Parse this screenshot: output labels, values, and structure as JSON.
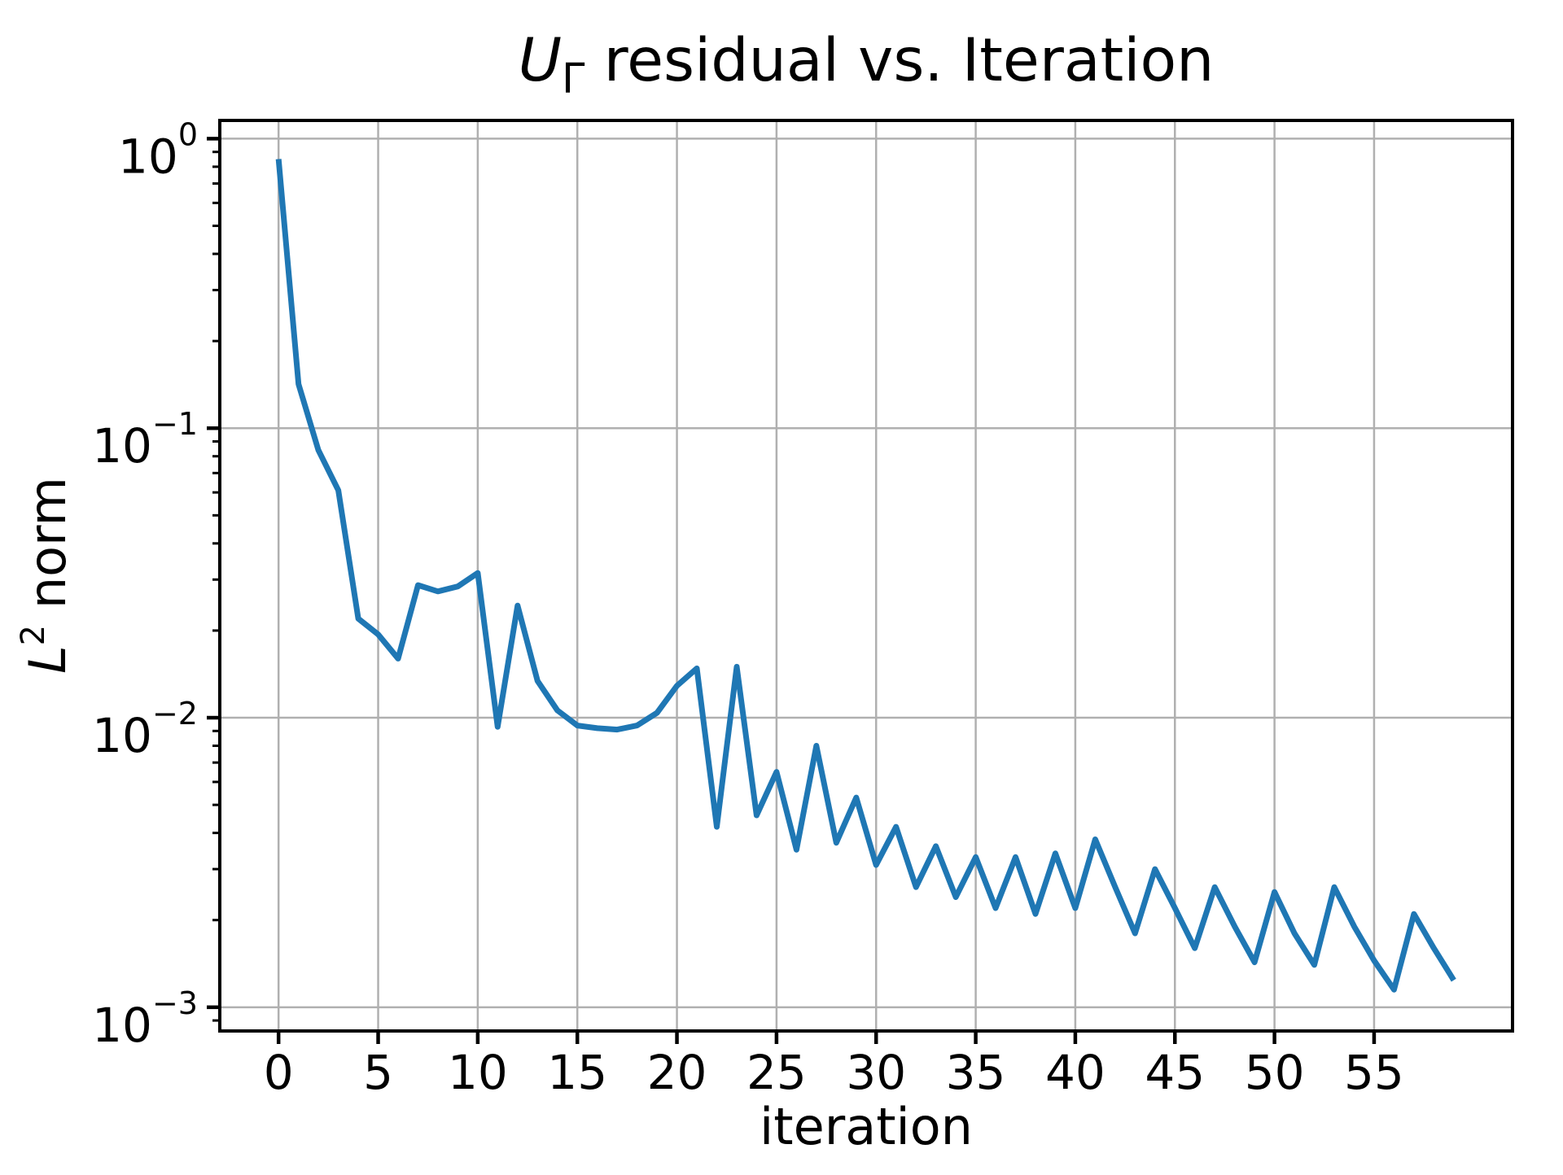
{
  "chart_data": {
    "type": "line",
    "title": {
      "math_var": "U",
      "math_sub": "Γ",
      "rest": " residual vs. Iteration"
    },
    "xlabel": "iteration",
    "ylabel": {
      "math_var": "L",
      "math_sup": "2",
      "rest": " norm"
    },
    "x_axis": {
      "ticks": [
        0,
        5,
        10,
        15,
        20,
        25,
        30,
        35,
        40,
        45,
        50,
        55
      ],
      "lim": [
        -2.95,
        61.95
      ]
    },
    "y_axis": {
      "scale": "log",
      "major_tick_exponents": [
        0,
        -1,
        -2,
        -3
      ],
      "tick_label_base": "10",
      "tick_label_exponents": [
        "0",
        "−1",
        "−2",
        "−3"
      ],
      "lim_log10": [
        -3.082,
        0.063
      ]
    },
    "grid": true,
    "legend": null,
    "series": [
      {
        "name": "U_Gamma residual L2 norm",
        "x": [
          0,
          1,
          2,
          3,
          4,
          5,
          6,
          7,
          8,
          9,
          10,
          11,
          12,
          13,
          14,
          15,
          16,
          17,
          18,
          19,
          20,
          21,
          22,
          23,
          24,
          25,
          26,
          27,
          28,
          29,
          30,
          31,
          32,
          33,
          34,
          35,
          36,
          37,
          38,
          39,
          40,
          41,
          42,
          43,
          44,
          45,
          46,
          47,
          48,
          49,
          50,
          51,
          52,
          53,
          54,
          55,
          56,
          57,
          58,
          59
        ],
        "values": [
          0.85,
          0.142,
          0.084,
          0.061,
          0.022,
          0.0194,
          0.016,
          0.0287,
          0.0273,
          0.0284,
          0.0316,
          0.0093,
          0.0244,
          0.0134,
          0.0106,
          0.0094,
          0.0092,
          0.0091,
          0.0094,
          0.0104,
          0.0129,
          0.0148,
          0.0042,
          0.015,
          0.0046,
          0.0065,
          0.0035,
          0.008,
          0.0037,
          0.0053,
          0.0031,
          0.0042,
          0.0026,
          0.0036,
          0.0024,
          0.0033,
          0.0022,
          0.0033,
          0.0021,
          0.0034,
          0.0022,
          0.0038,
          0.0026,
          0.0018,
          0.003,
          0.0022,
          0.0016,
          0.0026,
          0.0019,
          0.00143,
          0.0025,
          0.0018,
          0.0014,
          0.0026,
          0.0019,
          0.00145,
          0.00115,
          0.0021,
          0.0016,
          0.00124
        ]
      }
    ],
    "colors": {
      "line": "#1f77b4",
      "grid": "#b0b0b0",
      "axis": "#000000",
      "background": "#ffffff"
    }
  }
}
